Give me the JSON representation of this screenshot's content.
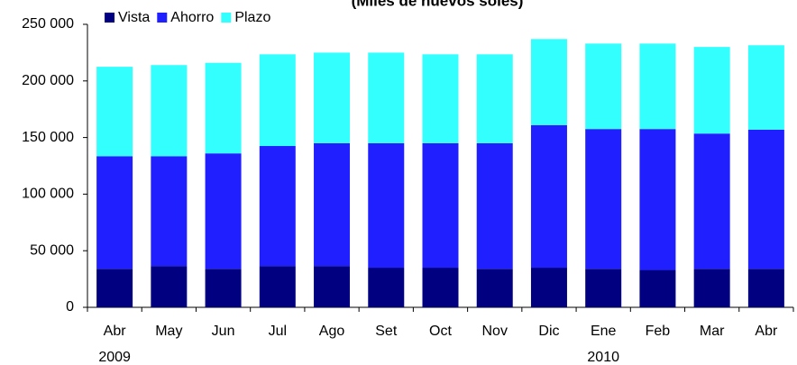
{
  "chart_data": {
    "type": "stacked_bar",
    "title": "(Miles de nuevos soles)",
    "categories": [
      "Abr",
      "May",
      "Jun",
      "Jul",
      "Ago",
      "Set",
      "Oct",
      "Nov",
      "Dic",
      "Ene",
      "Feb",
      "Mar",
      "Abr"
    ],
    "years": [
      "2009",
      null,
      null,
      null,
      null,
      null,
      null,
      null,
      null,
      "2010",
      null,
      null,
      null
    ],
    "series": [
      {
        "name": "Vista",
        "color": "#000080",
        "values": [
          34000,
          36500,
          34000,
          36500,
          36500,
          35000,
          35000,
          34000,
          35000,
          34000,
          33000,
          34000,
          34000
        ]
      },
      {
        "name": "Ahorro",
        "color": "#1f1fff",
        "values": [
          99500,
          97000,
          102000,
          106000,
          108500,
          110000,
          110000,
          111000,
          126000,
          123500,
          124500,
          119500,
          123000
        ]
      },
      {
        "name": "Plazo",
        "color": "#33ffff",
        "values": [
          79000,
          80500,
          80000,
          81000,
          80000,
          80000,
          78500,
          78500,
          76000,
          75500,
          75500,
          76500,
          74500
        ]
      }
    ],
    "ylim": [
      0,
      250000
    ],
    "yticks": [
      0,
      {
        "value": 50000,
        "label": "50 000"
      },
      {
        "value": 100000,
        "label": "100 000"
      },
      {
        "value": 150000,
        "label": "150 000"
      },
      {
        "value": 200000,
        "label": "200 000"
      },
      {
        "value": 250000,
        "label": "250 000"
      }
    ],
    "grid": false,
    "legend": "top"
  }
}
